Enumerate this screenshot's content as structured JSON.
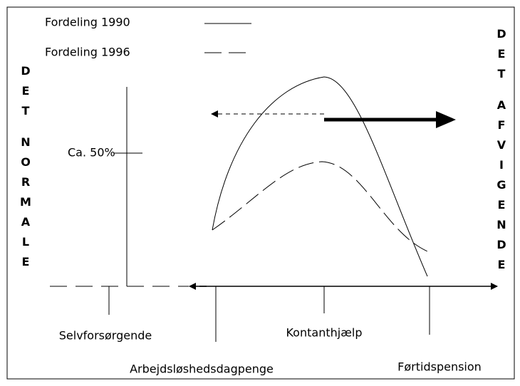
{
  "legend": [
    {
      "label": "Fordeling 1990"
    },
    {
      "label": "Fordeling 1996"
    }
  ],
  "left_label": [
    "DET",
    "NORMALE"
  ],
  "right_label": [
    "DET",
    "AFVIGENDE"
  ],
  "y_marker": "Ca. 50%",
  "categories": [
    "Selvforsørgende",
    "Arbejdsløshedsdagpenge",
    "Kontanthjælp",
    "Førtidspension"
  ]
}
